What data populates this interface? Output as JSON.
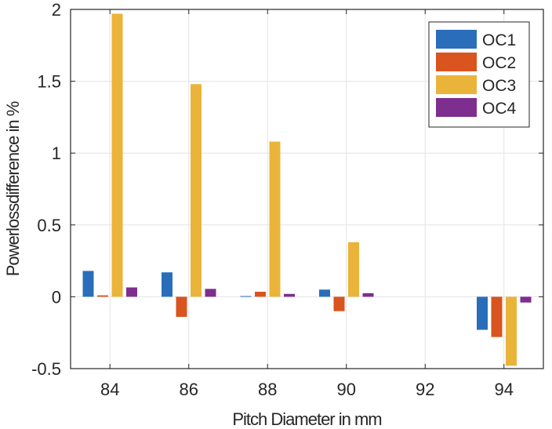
{
  "chart_data": {
    "type": "bar",
    "categories": [
      "84",
      "86",
      "88",
      "90",
      "92",
      "94"
    ],
    "series": [
      {
        "name": "OC1",
        "color": "#2a6ebb",
        "values": [
          0.18,
          0.17,
          0.005,
          0.05,
          0,
          -0.23
        ]
      },
      {
        "name": "OC2",
        "color": "#d9541e",
        "values": [
          0.01,
          -0.14,
          0.035,
          -0.1,
          0,
          -0.28
        ]
      },
      {
        "name": "OC3",
        "color": "#eab43a",
        "values": [
          1.97,
          1.48,
          1.08,
          0.38,
          0,
          -0.48
        ]
      },
      {
        "name": "OC4",
        "color": "#7d2e8e",
        "values": [
          0.065,
          0.055,
          0.02,
          0.025,
          0,
          -0.04
        ]
      }
    ],
    "xlabel": "Pitch Diameter in mm",
    "ylabel": "Powerlossdifference in %",
    "ylim": [
      -0.5,
      2
    ],
    "yticks": [
      -0.5,
      0,
      0.5,
      1,
      1.5,
      2
    ],
    "ytick_labels": [
      "-0.5",
      "0",
      "0.5",
      "1",
      "1.5",
      "2"
    ],
    "grid": true,
    "legend_position": "top-right"
  }
}
